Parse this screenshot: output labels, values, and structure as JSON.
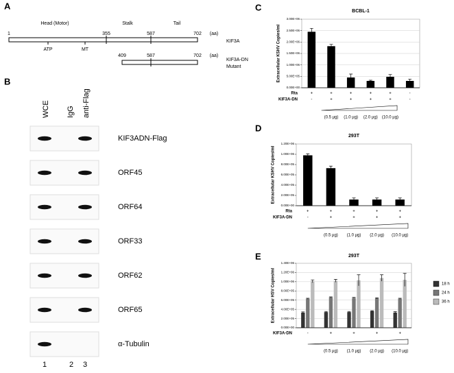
{
  "panel_a": {
    "label": "A",
    "regions": [
      "Head (Motor)",
      "Stalk",
      "Tail"
    ],
    "kif3a": {
      "positions": [
        1,
        355,
        587,
        702
      ],
      "unit": "(aa)",
      "name": "KIF3A",
      "sites": [
        "ATP",
        "MT"
      ]
    },
    "mutant": {
      "positions": [
        409,
        587,
        702
      ],
      "unit": "(aa)",
      "name": "KIF3A-DN",
      "subtitle": "Mutant"
    }
  },
  "panel_b": {
    "label": "B",
    "lanes": [
      "WCE",
      "IgG",
      "anti-Flag"
    ],
    "rows": [
      "KIF3ADN-Flag",
      "ORF45",
      "ORF64",
      "ORF33",
      "ORF62",
      "ORF65",
      "α-Tubulin"
    ],
    "lane_numbers": [
      "1",
      "2",
      "3"
    ]
  },
  "chart_data": [
    {
      "type": "bar",
      "panel": "C",
      "title": "BCBL-1",
      "y_label": "Extracellular KSHV Copies/ml",
      "values": [
        2450000,
        1820000,
        450000,
        300000,
        480000,
        300000
      ],
      "errors": [
        150000,
        80000,
        150000,
        30000,
        100000,
        80000
      ],
      "color": "#000000",
      "ylim": [
        0,
        3000000
      ],
      "yticks": [
        {
          "value": 0,
          "label": "0.00E+00"
        },
        {
          "value": 500000,
          "label": "5.00E+05"
        },
        {
          "value": 1000000,
          "label": "1.00E+06"
        },
        {
          "value": 1500000,
          "label": "1.50E+06"
        },
        {
          "value": 2000000,
          "label": "2.00E+06"
        },
        {
          "value": 2500000,
          "label": "2.50E+06"
        },
        {
          "value": 3000000,
          "label": "3.00E+06"
        }
      ],
      "grid": true,
      "conditions": [
        {
          "name": "Rta",
          "signs": [
            "+",
            "+",
            "+",
            "+",
            "+",
            "-"
          ]
        },
        {
          "name": "KIF3A-DN",
          "signs": [
            "-",
            "+",
            "+",
            "+",
            "+",
            "-"
          ]
        }
      ],
      "doses": [
        null,
        "(0.5 µg)",
        "(1.0 µg)",
        "(2.0 µg)",
        "(10.0 µg)",
        null
      ]
    },
    {
      "type": "bar",
      "panel": "D",
      "title": "293T",
      "y_label": "Extracellular KSHV Copies/ml",
      "values": [
        980000,
        730000,
        120000,
        120000,
        120000
      ],
      "errors": [
        30000,
        40000,
        30000,
        30000,
        30000
      ],
      "color": "#000000",
      "ylim": [
        0,
        1200000
      ],
      "yticks": [
        {
          "value": 0,
          "label": "0.00E+00"
        },
        {
          "value": 200000,
          "label": "2.00E+05"
        },
        {
          "value": 400000,
          "label": "4.00E+05"
        },
        {
          "value": 600000,
          "label": "6.00E+05"
        },
        {
          "value": 800000,
          "label": "8.00E+05"
        },
        {
          "value": 1000000,
          "label": "1.00E+06"
        },
        {
          "value": 1200000,
          "label": "1.20E+06"
        }
      ],
      "grid": false,
      "conditions": [
        {
          "name": "Rta",
          "signs": [
            "+",
            "+",
            "+",
            "+",
            "+"
          ]
        },
        {
          "name": "KIF3A-DN",
          "signs": [
            "-",
            "+",
            "+",
            "+",
            "+"
          ]
        }
      ],
      "doses": [
        null,
        "(0.5 µg)",
        "(1.0 µg)",
        "(2.0 µg)",
        "(10.0 µg)"
      ]
    },
    {
      "type": "bar",
      "panel": "E",
      "title": "293T",
      "y_label": "Extracellular HSV Copies/ml",
      "series": [
        {
          "name": "18 h",
          "color": "#333333",
          "values": [
            330000,
            340000,
            340000,
            360000,
            330000
          ],
          "errors": [
            15000,
            15000,
            15000,
            10000,
            20000
          ]
        },
        {
          "name": "24 h",
          "color": "#777777",
          "values": [
            630000,
            660000,
            650000,
            640000,
            630000
          ],
          "errors": [
            10000,
            10000,
            10000,
            10000,
            10000
          ]
        },
        {
          "name": "36 h",
          "color": "#bbbbbb",
          "values": [
            1010000,
            1020000,
            1030000,
            1080000,
            1040000
          ],
          "errors": [
            30000,
            30000,
            120000,
            70000,
            140000
          ]
        }
      ],
      "ylim": [
        0,
        1400000
      ],
      "yticks": [
        {
          "value": 0,
          "label": "0.00E+00"
        },
        {
          "value": 200000,
          "label": "2.00E+05"
        },
        {
          "value": 400000,
          "label": "4.00E+05"
        },
        {
          "value": 600000,
          "label": "6.00E+05"
        },
        {
          "value": 800000,
          "label": "8.00E+05"
        },
        {
          "value": 1000000,
          "label": "1.00E+06"
        },
        {
          "value": 1200000,
          "label": "1.20E+06"
        },
        {
          "value": 1400000,
          "label": "1.40E+06"
        }
      ],
      "grid": true,
      "legend": "right",
      "conditions": [
        {
          "name": "KIF3A-DN",
          "signs": [
            "-",
            "+",
            "+",
            "+",
            "+"
          ]
        }
      ],
      "doses": [
        null,
        "(0.5 µg)",
        "(1.0 µg)",
        "(2.0 µg)",
        "(10.0 µg)"
      ]
    }
  ]
}
